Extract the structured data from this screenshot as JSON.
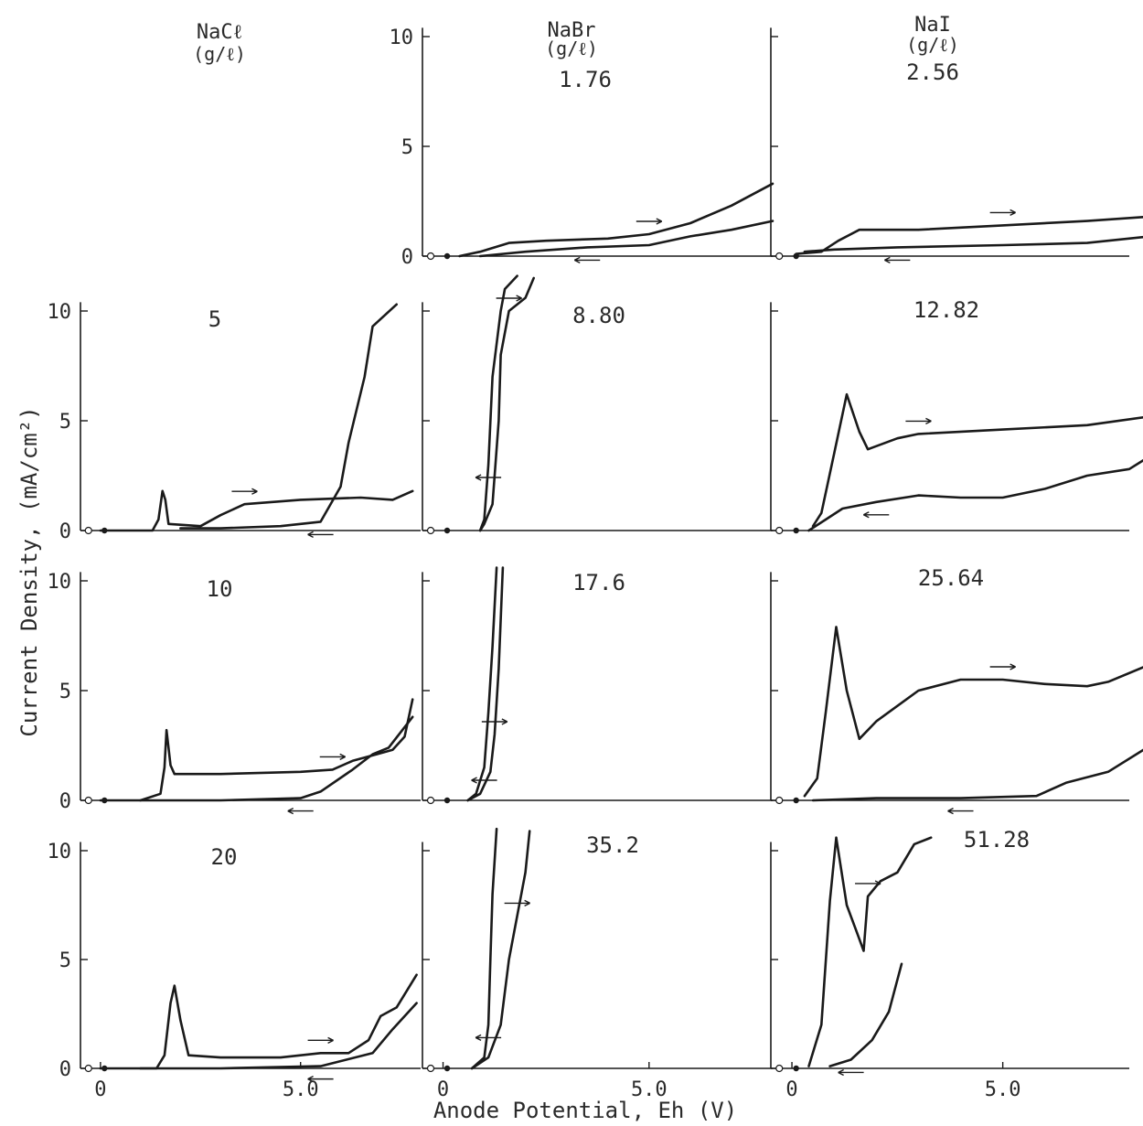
{
  "chart_data": {
    "type": "line",
    "ylabel": "Current Density, (mA/cm²)",
    "xlabel": "Anode Potential, Eh (V)",
    "y_ticks": [
      "0",
      "5",
      "10"
    ],
    "x_ticks": [
      "0",
      "5.0"
    ],
    "xlim": [
      -0.5,
      8.0
    ],
    "ylim": [
      0,
      10
    ],
    "columns": [
      {
        "salt": "NaCℓ",
        "unit": "(g/ℓ)"
      },
      {
        "salt": "NaBr",
        "unit": "(g/ℓ)"
      },
      {
        "salt": "NaI",
        "unit": "(g/ℓ)"
      }
    ],
    "panels": [
      {
        "row": 1,
        "col": 1,
        "label": "1.76",
        "series": [
          {
            "dir": "forward",
            "points": [
              [
                0.4,
                0
              ],
              [
                0.9,
                0.2
              ],
              [
                1.6,
                0.6
              ],
              [
                2.5,
                0.7
              ],
              [
                4,
                0.8
              ],
              [
                5,
                1.0
              ],
              [
                6,
                1.5
              ],
              [
                7,
                2.3
              ],
              [
                8,
                3.3
              ]
            ]
          },
          {
            "dir": "reverse",
            "points": [
              [
                8,
                1.6
              ],
              [
                7,
                1.2
              ],
              [
                6,
                0.9
              ],
              [
                5,
                0.5
              ],
              [
                3.5,
                0.4
              ],
              [
                2,
                0.2
              ],
              [
                0.9,
                0
              ]
            ]
          }
        ]
      },
      {
        "row": 1,
        "col": 2,
        "label": "2.56",
        "series": [
          {
            "dir": "forward",
            "points": [
              [
                0.1,
                0.1
              ],
              [
                0.7,
                0.2
              ],
              [
                1.1,
                0.7
              ],
              [
                1.6,
                1.2
              ],
              [
                3,
                1.2
              ],
              [
                5,
                1.4
              ],
              [
                7,
                1.6
              ],
              [
                8.5,
                1.8
              ]
            ]
          },
          {
            "dir": "reverse",
            "points": [
              [
                8.5,
                0.9
              ],
              [
                7,
                0.6
              ],
              [
                5,
                0.5
              ],
              [
                2.5,
                0.4
              ],
              [
                1,
                0.3
              ],
              [
                0.3,
                0.2
              ]
            ]
          }
        ]
      },
      {
        "row": 2,
        "col": 0,
        "label": "5",
        "series": [
          {
            "dir": "forward",
            "points": [
              [
                0,
                0
              ],
              [
                1.3,
                0
              ],
              [
                1.45,
                0.5
              ],
              [
                1.55,
                1.8
              ],
              [
                1.62,
                1.4
              ],
              [
                1.7,
                0.3
              ],
              [
                2.5,
                0.2
              ],
              [
                3.0,
                0.7
              ],
              [
                3.6,
                1.2
              ],
              [
                5,
                1.4
              ],
              [
                6.5,
                1.5
              ],
              [
                7.3,
                1.4
              ],
              [
                7.8,
                1.8
              ]
            ]
          },
          {
            "dir": "reverse",
            "points": [
              [
                7.4,
                10.3
              ],
              [
                6.8,
                9.3
              ],
              [
                6.6,
                7
              ],
              [
                6.2,
                4
              ],
              [
                6.0,
                2
              ],
              [
                5.5,
                0.4
              ],
              [
                4.5,
                0.2
              ],
              [
                3,
                0.1
              ],
              [
                2,
                0.1
              ]
            ]
          }
        ]
      },
      {
        "row": 2,
        "col": 1,
        "label": "8.80",
        "series": [
          {
            "dir": "forward",
            "points": [
              [
                0.9,
                0
              ],
              [
                1.0,
                0.3
              ],
              [
                1.2,
                1.2
              ],
              [
                1.35,
                5
              ],
              [
                1.4,
                8
              ],
              [
                1.6,
                10
              ],
              [
                2.0,
                10.6
              ],
              [
                2.2,
                11.5
              ]
            ]
          },
          {
            "dir": "reverse",
            "points": [
              [
                1.8,
                11.6
              ],
              [
                1.5,
                11
              ],
              [
                1.4,
                10
              ],
              [
                1.2,
                7
              ],
              [
                1.1,
                3
              ],
              [
                1.0,
                0.5
              ],
              [
                0.9,
                0
              ]
            ]
          }
        ]
      },
      {
        "row": 2,
        "col": 2,
        "label": "12.82",
        "series": [
          {
            "dir": "forward",
            "points": [
              [
                0.5,
                0.2
              ],
              [
                0.7,
                0.8
              ],
              [
                1.0,
                3.5
              ],
              [
                1.3,
                6.2
              ],
              [
                1.6,
                4.5
              ],
              [
                1.8,
                3.7
              ],
              [
                2.5,
                4.2
              ],
              [
                3,
                4.4
              ],
              [
                5,
                4.6
              ],
              [
                7,
                4.8
              ],
              [
                8.5,
                5.2
              ]
            ]
          },
          {
            "dir": "reverse",
            "points": [
              [
                8.5,
                3.4
              ],
              [
                8,
                2.8
              ],
              [
                7,
                2.5
              ],
              [
                6,
                1.9
              ],
              [
                5,
                1.5
              ],
              [
                4,
                1.5
              ],
              [
                3,
                1.6
              ],
              [
                2,
                1.3
              ],
              [
                1.2,
                1.0
              ],
              [
                0.8,
                0.5
              ],
              [
                0.4,
                0
              ]
            ]
          }
        ]
      },
      {
        "row": 3,
        "col": 0,
        "label": "10",
        "series": [
          {
            "dir": "forward",
            "points": [
              [
                0,
                0
              ],
              [
                1.0,
                0
              ],
              [
                1.5,
                0.3
              ],
              [
                1.6,
                1.5
              ],
              [
                1.65,
                3.2
              ],
              [
                1.75,
                1.6
              ],
              [
                1.85,
                1.2
              ],
              [
                3,
                1.2
              ],
              [
                5,
                1.3
              ],
              [
                5.8,
                1.4
              ],
              [
                6.3,
                1.8
              ],
              [
                6.9,
                2.1
              ],
              [
                7.3,
                2.3
              ],
              [
                7.6,
                2.9
              ],
              [
                7.8,
                4.6
              ]
            ]
          },
          {
            "dir": "reverse",
            "points": [
              [
                7.8,
                3.8
              ],
              [
                7.2,
                2.4
              ],
              [
                6.8,
                2.1
              ],
              [
                6.3,
                1.4
              ],
              [
                5.5,
                0.4
              ],
              [
                5.0,
                0.1
              ],
              [
                3,
                0
              ],
              [
                1,
                0
              ]
            ]
          }
        ]
      },
      {
        "row": 3,
        "col": 1,
        "label": "17.6",
        "series": [
          {
            "dir": "forward",
            "points": [
              [
                0.6,
                0
              ],
              [
                0.9,
                0.3
              ],
              [
                1.15,
                1.3
              ],
              [
                1.25,
                3
              ],
              [
                1.35,
                6
              ],
              [
                1.45,
                10.6
              ]
            ]
          },
          {
            "dir": "reverse",
            "points": [
              [
                1.3,
                10.6
              ],
              [
                1.2,
                7
              ],
              [
                1.1,
                4
              ],
              [
                1.0,
                1.5
              ],
              [
                0.8,
                0.3
              ],
              [
                0.6,
                0
              ]
            ]
          }
        ]
      },
      {
        "row": 3,
        "col": 2,
        "label": "25.64",
        "series": [
          {
            "dir": "forward",
            "points": [
              [
                0.3,
                0.2
              ],
              [
                0.6,
                1
              ],
              [
                0.8,
                4
              ],
              [
                1.05,
                7.9
              ],
              [
                1.3,
                5
              ],
              [
                1.6,
                2.8
              ],
              [
                2,
                3.6
              ],
              [
                3,
                5
              ],
              [
                4,
                5.5
              ],
              [
                5,
                5.5
              ],
              [
                6,
                5.3
              ],
              [
                7,
                5.2
              ],
              [
                7.5,
                5.4
              ],
              [
                8.5,
                6.2
              ]
            ]
          },
          {
            "dir": "reverse",
            "points": [
              [
                8.5,
                2.5
              ],
              [
                7.5,
                1.3
              ],
              [
                6.5,
                0.8
              ],
              [
                5.8,
                0.2
              ],
              [
                4,
                0.1
              ],
              [
                2,
                0.1
              ],
              [
                0.5,
                0
              ]
            ]
          }
        ]
      },
      {
        "row": 4,
        "col": 0,
        "label": "20",
        "series": [
          {
            "dir": "forward",
            "points": [
              [
                0,
                0
              ],
              [
                1.4,
                0
              ],
              [
                1.6,
                0.6
              ],
              [
                1.75,
                3.0
              ],
              [
                1.85,
                3.8
              ],
              [
                2.0,
                2.2
              ],
              [
                2.2,
                0.6
              ],
              [
                3,
                0.5
              ],
              [
                4.5,
                0.5
              ],
              [
                5.5,
                0.7
              ],
              [
                6.2,
                0.7
              ],
              [
                6.7,
                1.3
              ],
              [
                7.0,
                2.4
              ],
              [
                7.4,
                2.8
              ],
              [
                7.9,
                4.3
              ]
            ]
          },
          {
            "dir": "reverse",
            "points": [
              [
                7.9,
                3.0
              ],
              [
                7.3,
                1.8
              ],
              [
                6.8,
                0.7
              ],
              [
                5.5,
                0.1
              ],
              [
                3,
                0
              ],
              [
                1,
                0
              ]
            ]
          }
        ]
      },
      {
        "row": 4,
        "col": 1,
        "label": "35.2",
        "series": [
          {
            "dir": "forward",
            "points": [
              [
                0.7,
                0
              ],
              [
                1.1,
                0.5
              ],
              [
                1.4,
                2
              ],
              [
                1.6,
                5
              ],
              [
                1.8,
                7
              ],
              [
                2.0,
                9
              ],
              [
                2.1,
                10.9
              ]
            ]
          },
          {
            "dir": "reverse",
            "points": [
              [
                1.3,
                11.0
              ],
              [
                1.2,
                8
              ],
              [
                1.15,
                5
              ],
              [
                1.1,
                2
              ],
              [
                1.0,
                0.5
              ],
              [
                0.7,
                0
              ]
            ]
          }
        ]
      },
      {
        "row": 4,
        "col": 2,
        "label": "51.28",
        "series": [
          {
            "dir": "forward",
            "points": [
              [
                0.4,
                0.1
              ],
              [
                0.7,
                2
              ],
              [
                0.9,
                7.7
              ],
              [
                1.05,
                10.6
              ],
              [
                1.3,
                7.5
              ],
              [
                1.55,
                6.2
              ],
              [
                1.7,
                5.4
              ],
              [
                1.8,
                7.9
              ],
              [
                2.1,
                8.6
              ],
              [
                2.5,
                9
              ],
              [
                2.9,
                10.3
              ],
              [
                3.3,
                10.6
              ]
            ]
          },
          {
            "dir": "reverse",
            "points": [
              [
                2.6,
                4.8
              ],
              [
                2.3,
                2.6
              ],
              [
                1.9,
                1.3
              ],
              [
                1.4,
                0.4
              ],
              [
                0.9,
                0.1
              ]
            ]
          }
        ]
      }
    ]
  }
}
